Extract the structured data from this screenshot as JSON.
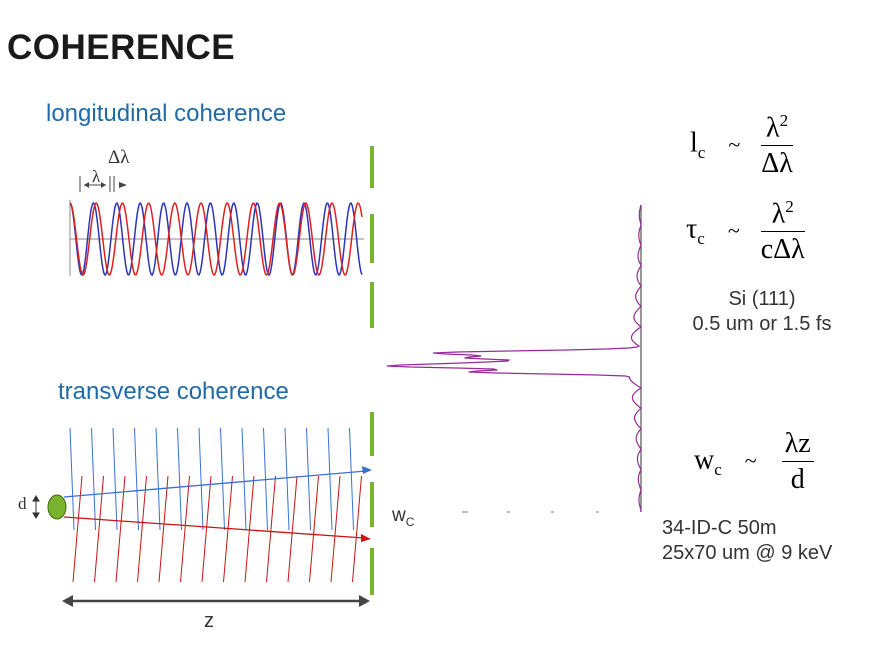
{
  "title": "COHERENCE",
  "longitudinal": {
    "heading": "longitudinal coherence",
    "delta_lambda_label": "Δλ",
    "lambda_label": "λ",
    "wave_colors": [
      "#2b35b8",
      "#e02020"
    ]
  },
  "transverse": {
    "heading": "transverse  coherence",
    "source_label": "d",
    "distance_label": "z",
    "width_label": "w",
    "width_subscript": "C",
    "ray_colors": [
      "#3a6fd8",
      "#c81414"
    ]
  },
  "equations": {
    "lc": {
      "lhs": "l",
      "sub": "c",
      "op": "~",
      "num_base": "λ",
      "num_sup": "2",
      "den": "Δλ"
    },
    "tc": {
      "lhs": "τ",
      "sub": "c",
      "op": "~",
      "num_base": "λ",
      "num_sup": "2",
      "den": "cΔλ"
    },
    "wc": {
      "lhs": "w",
      "sub": "c",
      "op": "~",
      "num": "λz",
      "den": "d"
    }
  },
  "notes": {
    "si": [
      "Si (111)",
      "0.5 um or 1.5 fs"
    ],
    "beamline": [
      "34-ID-C 50m",
      "25x70 um @ 9 keV"
    ]
  },
  "colors": {
    "heading": "#1f6aa8",
    "slit": "#7ab32e",
    "spectrum": "#9a2a9a"
  }
}
